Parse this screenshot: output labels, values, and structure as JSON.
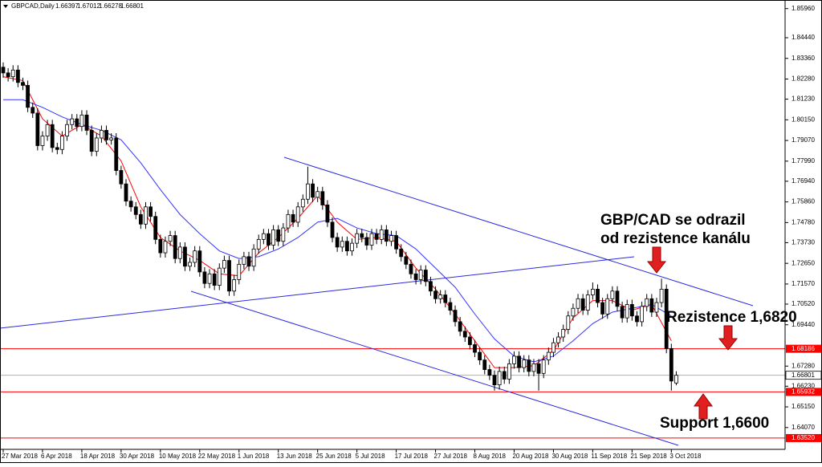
{
  "chart_data": {
    "type": "candlestick",
    "title": "GBPCAD,Daily",
    "categories": [
      "27 Mar 2018",
      null,
      null,
      null,
      null,
      null,
      null,
      null,
      "6 Apr 2018",
      null,
      null,
      null,
      null,
      null,
      null,
      null,
      "18 Apr 2018",
      null,
      null,
      null,
      null,
      null,
      null,
      null,
      "30 Apr 2018",
      null,
      null,
      null,
      null,
      null,
      null,
      null,
      "10 May 2018",
      null,
      null,
      null,
      null,
      null,
      null,
      null,
      "22 May 2018",
      null,
      null,
      null,
      null,
      null,
      null,
      null,
      "1 Jun 2018",
      null,
      null,
      null,
      null,
      null,
      null,
      null,
      "13 Jun 2018",
      null,
      null,
      null,
      null,
      null,
      null,
      null,
      "25 Jun 2018",
      null,
      null,
      null,
      null,
      null,
      null,
      null,
      "5 Jul 2018",
      null,
      null,
      null,
      null,
      null,
      null,
      null,
      "17 Jul 2018",
      null,
      null,
      null,
      null,
      null,
      null,
      null,
      "27 Jul 2018",
      null,
      null,
      null,
      null,
      null,
      null,
      null,
      "8 Aug 2018",
      null,
      null,
      null,
      null,
      null,
      null,
      null,
      "20 Aug 2018",
      null,
      null,
      null,
      null,
      null,
      null,
      null,
      "30 Aug 2018",
      null,
      null,
      null,
      null,
      null,
      null,
      null,
      "11 Sep 2018",
      null,
      null,
      null,
      null,
      null,
      null,
      null,
      "21 Sep 2018",
      null,
      null,
      null,
      null,
      null,
      null,
      null,
      "3 Oct 2018",
      null
    ],
    "open": [
      1.829,
      1.826,
      1.824,
      1.8275,
      1.821,
      1.8195,
      1.808,
      1.805,
      1.788,
      1.793,
      1.799,
      1.787,
      1.786,
      1.793,
      1.799,
      1.802,
      1.798,
      1.804,
      1.796,
      1.785,
      1.792,
      1.796,
      1.791,
      1.792,
      1.775,
      1.768,
      1.759,
      1.756,
      1.752,
      1.747,
      1.756,
      1.751,
      1.739,
      1.732,
      1.738,
      1.741,
      1.729,
      1.735,
      1.725,
      1.727,
      1.733,
      1.722,
      1.716,
      1.721,
      1.715,
      1.724,
      1.728,
      1.712,
      1.718,
      1.726,
      1.73,
      1.725,
      1.734,
      1.739,
      1.742,
      1.736,
      1.744,
      1.738,
      1.745,
      1.752,
      1.748,
      1.756,
      1.76,
      1.768,
      1.761,
      1.764,
      1.757,
      1.748,
      1.74,
      1.735,
      1.738,
      1.733,
      1.737,
      1.742,
      1.74,
      1.736,
      1.742,
      1.739,
      1.744,
      1.738,
      1.741,
      1.734,
      1.73,
      1.726,
      1.721,
      1.718,
      1.723,
      1.717,
      1.712,
      1.708,
      1.71,
      1.706,
      1.702,
      1.696,
      1.691,
      1.688,
      1.684,
      1.68,
      1.676,
      1.671,
      1.668,
      1.663,
      1.67,
      1.666,
      1.674,
      1.678,
      1.672,
      1.676,
      1.67,
      1.674,
      1.669,
      1.676,
      1.68,
      1.685,
      1.688,
      1.692,
      1.699,
      1.703,
      1.708,
      1.702,
      1.71,
      1.713,
      1.706,
      1.7,
      1.708,
      1.712,
      1.704,
      1.698,
      1.705,
      1.699,
      1.696,
      1.704,
      1.708,
      1.701,
      1.706,
      1.713,
      1.682,
      1.66397
    ],
    "high": [
      1.8315,
      1.8285,
      1.83,
      1.83,
      1.8235,
      1.822,
      1.8105,
      1.8075,
      1.7955,
      1.8015,
      1.8015,
      1.7895,
      1.7955,
      1.8015,
      1.8045,
      1.8045,
      1.8065,
      1.8065,
      1.7985,
      1.7945,
      1.7985,
      1.7985,
      1.7945,
      1.7945,
      1.7775,
      1.7705,
      1.7615,
      1.7585,
      1.7545,
      1.7585,
      1.7585,
      1.7535,
      1.7415,
      1.7405,
      1.7435,
      1.7435,
      1.7375,
      1.7375,
      1.7295,
      1.7355,
      1.7355,
      1.7245,
      1.7235,
      1.7235,
      1.7265,
      1.7305,
      1.7305,
      1.7205,
      1.7285,
      1.7325,
      1.7325,
      1.7365,
      1.7415,
      1.7445,
      1.7445,
      1.7465,
      1.7465,
      1.7475,
      1.7545,
      1.7545,
      1.7585,
      1.7625,
      1.777,
      1.7705,
      1.7665,
      1.7665,
      1.7595,
      1.7505,
      1.7425,
      1.7405,
      1.7405,
      1.7395,
      1.7445,
      1.7445,
      1.7425,
      1.7445,
      1.7445,
      1.7465,
      1.7465,
      1.7435,
      1.7435,
      1.7365,
      1.7325,
      1.7285,
      1.7235,
      1.7255,
      1.7255,
      1.7195,
      1.7145,
      1.7125,
      1.7125,
      1.7085,
      1.7045,
      1.6985,
      1.6935,
      1.6905,
      1.6865,
      1.6825,
      1.6785,
      1.6735,
      1.6705,
      1.6725,
      1.6725,
      1.6765,
      1.6805,
      1.6805,
      1.6785,
      1.6785,
      1.6765,
      1.6765,
      1.6785,
      1.6825,
      1.6875,
      1.6905,
      1.6945,
      1.7015,
      1.7055,
      1.7105,
      1.7105,
      1.7125,
      1.7165,
      1.7155,
      1.7085,
      1.7105,
      1.7145,
      1.7145,
      1.7065,
      1.7075,
      1.7075,
      1.7015,
      1.7065,
      1.7105,
      1.7105,
      1.7085,
      1.7185,
      1.7155,
      1.6845,
      1.67012
    ],
    "low": [
      1.8235,
      1.8215,
      1.8215,
      1.8185,
      1.817,
      1.8055,
      1.8025,
      1.7855,
      1.7855,
      1.7905,
      1.7845,
      1.7835,
      1.7835,
      1.7905,
      1.7965,
      1.7955,
      1.7955,
      1.7935,
      1.7825,
      1.7825,
      1.7895,
      1.7885,
      1.7885,
      1.7725,
      1.7655,
      1.7565,
      1.7535,
      1.7495,
      1.7445,
      1.7445,
      1.7485,
      1.7365,
      1.7295,
      1.7295,
      1.7355,
      1.7265,
      1.7265,
      1.7225,
      1.7225,
      1.7245,
      1.7195,
      1.7135,
      1.7135,
      1.7125,
      1.7125,
      1.7215,
      1.7095,
      1.7095,
      1.7155,
      1.7235,
      1.7225,
      1.7225,
      1.7315,
      1.7365,
      1.7335,
      1.7335,
      1.7355,
      1.7355,
      1.7425,
      1.7455,
      1.7455,
      1.7535,
      1.7575,
      1.7585,
      1.7585,
      1.7545,
      1.7455,
      1.7375,
      1.7325,
      1.7325,
      1.7305,
      1.7305,
      1.7345,
      1.7375,
      1.7335,
      1.7335,
      1.7365,
      1.7365,
      1.7355,
      1.7355,
      1.7315,
      1.7275,
      1.7235,
      1.7185,
      1.7155,
      1.7155,
      1.7145,
      1.7095,
      1.7055,
      1.7055,
      1.7035,
      1.6995,
      1.6935,
      1.6885,
      1.6855,
      1.6815,
      1.6775,
      1.6735,
      1.6685,
      1.6655,
      1.66,
      1.6605,
      1.6635,
      1.6635,
      1.6715,
      1.6695,
      1.6695,
      1.6675,
      1.6675,
      1.66,
      1.6665,
      1.6735,
      1.6775,
      1.6825,
      1.6855,
      1.6895,
      1.6965,
      1.7005,
      1.6995,
      1.6995,
      1.7075,
      1.7035,
      1.6975,
      1.6975,
      1.7055,
      1.7015,
      1.6955,
      1.6955,
      1.6965,
      1.6935,
      1.6935,
      1.7015,
      1.6985,
      1.6985,
      1.7035,
      1.6795,
      1.66,
      1.66278
    ],
    "close": [
      1.826,
      1.824,
      1.8275,
      1.821,
      1.8195,
      1.808,
      1.805,
      1.788,
      1.793,
      1.799,
      1.787,
      1.786,
      1.793,
      1.799,
      1.802,
      1.798,
      1.804,
      1.796,
      1.785,
      1.792,
      1.796,
      1.791,
      1.792,
      1.775,
      1.768,
      1.759,
      1.756,
      1.752,
      1.747,
      1.756,
      1.751,
      1.739,
      1.732,
      1.738,
      1.741,
      1.729,
      1.735,
      1.725,
      1.727,
      1.733,
      1.722,
      1.716,
      1.721,
      1.715,
      1.724,
      1.728,
      1.712,
      1.718,
      1.726,
      1.73,
      1.725,
      1.734,
      1.739,
      1.742,
      1.736,
      1.744,
      1.738,
      1.745,
      1.752,
      1.748,
      1.756,
      1.76,
      1.768,
      1.761,
      1.764,
      1.757,
      1.748,
      1.74,
      1.735,
      1.738,
      1.733,
      1.737,
      1.742,
      1.74,
      1.736,
      1.742,
      1.739,
      1.744,
      1.738,
      1.741,
      1.734,
      1.73,
      1.726,
      1.721,
      1.718,
      1.723,
      1.717,
      1.712,
      1.708,
      1.71,
      1.706,
      1.702,
      1.696,
      1.691,
      1.688,
      1.684,
      1.68,
      1.676,
      1.671,
      1.668,
      1.663,
      1.67,
      1.666,
      1.674,
      1.678,
      1.672,
      1.676,
      1.67,
      1.674,
      1.669,
      1.676,
      1.68,
      1.685,
      1.688,
      1.692,
      1.699,
      1.703,
      1.708,
      1.702,
      1.71,
      1.713,
      1.706,
      1.7,
      1.708,
      1.712,
      1.704,
      1.698,
      1.705,
      1.699,
      1.696,
      1.704,
      1.708,
      1.701,
      1.706,
      1.713,
      1.682,
      1.665,
      1.66801
    ],
    "up_color": "#ffffff",
    "down_color": "#000000",
    "moving_averages": [
      {
        "color": "#ff0000",
        "x": [
          0,
          4,
          8,
          12,
          16,
          20,
          24,
          28,
          32,
          36,
          40,
          44,
          48,
          52,
          56,
          60,
          64,
          68,
          72,
          76,
          80,
          84,
          88,
          92,
          96,
          100,
          104,
          108,
          112,
          116,
          120,
          124,
          128,
          132,
          136
        ],
        "values": [
          1.824,
          1.822,
          1.802,
          1.793,
          1.799,
          1.793,
          1.78,
          1.756,
          1.74,
          1.733,
          1.728,
          1.721,
          1.72,
          1.732,
          1.74,
          1.75,
          1.762,
          1.748,
          1.739,
          1.74,
          1.738,
          1.724,
          1.713,
          1.7,
          1.686,
          1.672,
          1.672,
          1.673,
          1.681,
          1.698,
          1.707,
          1.707,
          1.702,
          1.705,
          1.686
        ]
      },
      {
        "color": "#3333ff",
        "x": [
          0,
          4,
          8,
          12,
          16,
          20,
          24,
          28,
          32,
          36,
          40,
          44,
          48,
          52,
          56,
          60,
          64,
          68,
          72,
          76,
          80,
          84,
          88,
          92,
          96,
          100,
          104,
          108,
          112,
          116,
          120,
          124,
          128,
          132,
          136
        ],
        "values": [
          1.812,
          1.812,
          1.808,
          1.803,
          1.799,
          1.796,
          1.791,
          1.779,
          1.765,
          1.752,
          1.742,
          1.733,
          1.729,
          1.73,
          1.734,
          1.74,
          1.748,
          1.75,
          1.745,
          1.742,
          1.741,
          1.734,
          1.724,
          1.714,
          1.7,
          1.687,
          1.678,
          1.675,
          1.678,
          1.686,
          1.695,
          1.701,
          1.703,
          1.705,
          1.699
        ]
      }
    ],
    "ylim": [
      1.6293,
      1.8641
    ],
    "yticks": [
      {
        "value": 1.8596,
        "label": "1.85960"
      },
      {
        "value": 1.8444,
        "label": "1.84440"
      },
      {
        "value": 1.8336,
        "label": "1.83360"
      },
      {
        "value": 1.8228,
        "label": "1.82280"
      },
      {
        "value": 1.8123,
        "label": "1.81230"
      },
      {
        "value": 1.8015,
        "label": "1.80150"
      },
      {
        "value": 1.7907,
        "label": "1.79070"
      },
      {
        "value": 1.7799,
        "label": "1.77990"
      },
      {
        "value": 1.7694,
        "label": "1.76940"
      },
      {
        "value": 1.7586,
        "label": "1.75860"
      },
      {
        "value": 1.7478,
        "label": "1.74780"
      },
      {
        "value": 1.7373,
        "label": "1.73730"
      },
      {
        "value": 1.7265,
        "label": "1.72650"
      },
      {
        "value": 1.7157,
        "label": "1.71570"
      },
      {
        "value": 1.7052,
        "label": "1.70520"
      },
      {
        "value": 1.6944,
        "label": "1.69440"
      },
      {
        "value": 1.6728,
        "label": "1.67280"
      },
      {
        "value": 1.6623,
        "label": "1.66230"
      },
      {
        "value": 1.6515,
        "label": "1.65150"
      },
      {
        "value": 1.6407,
        "label": "1.64070"
      }
    ],
    "levels": [
      1.68186,
      1.65932,
      {
        "value": 1.6352,
        "label": "1.63520"
      }
    ],
    "level_color": "#ff0000",
    "annotations": [
      "GBP/CAD se odrazil",
      "od rezistence kanálu",
      "Rezistence 1,6820",
      "Support 1,6600"
    ]
  }
}
